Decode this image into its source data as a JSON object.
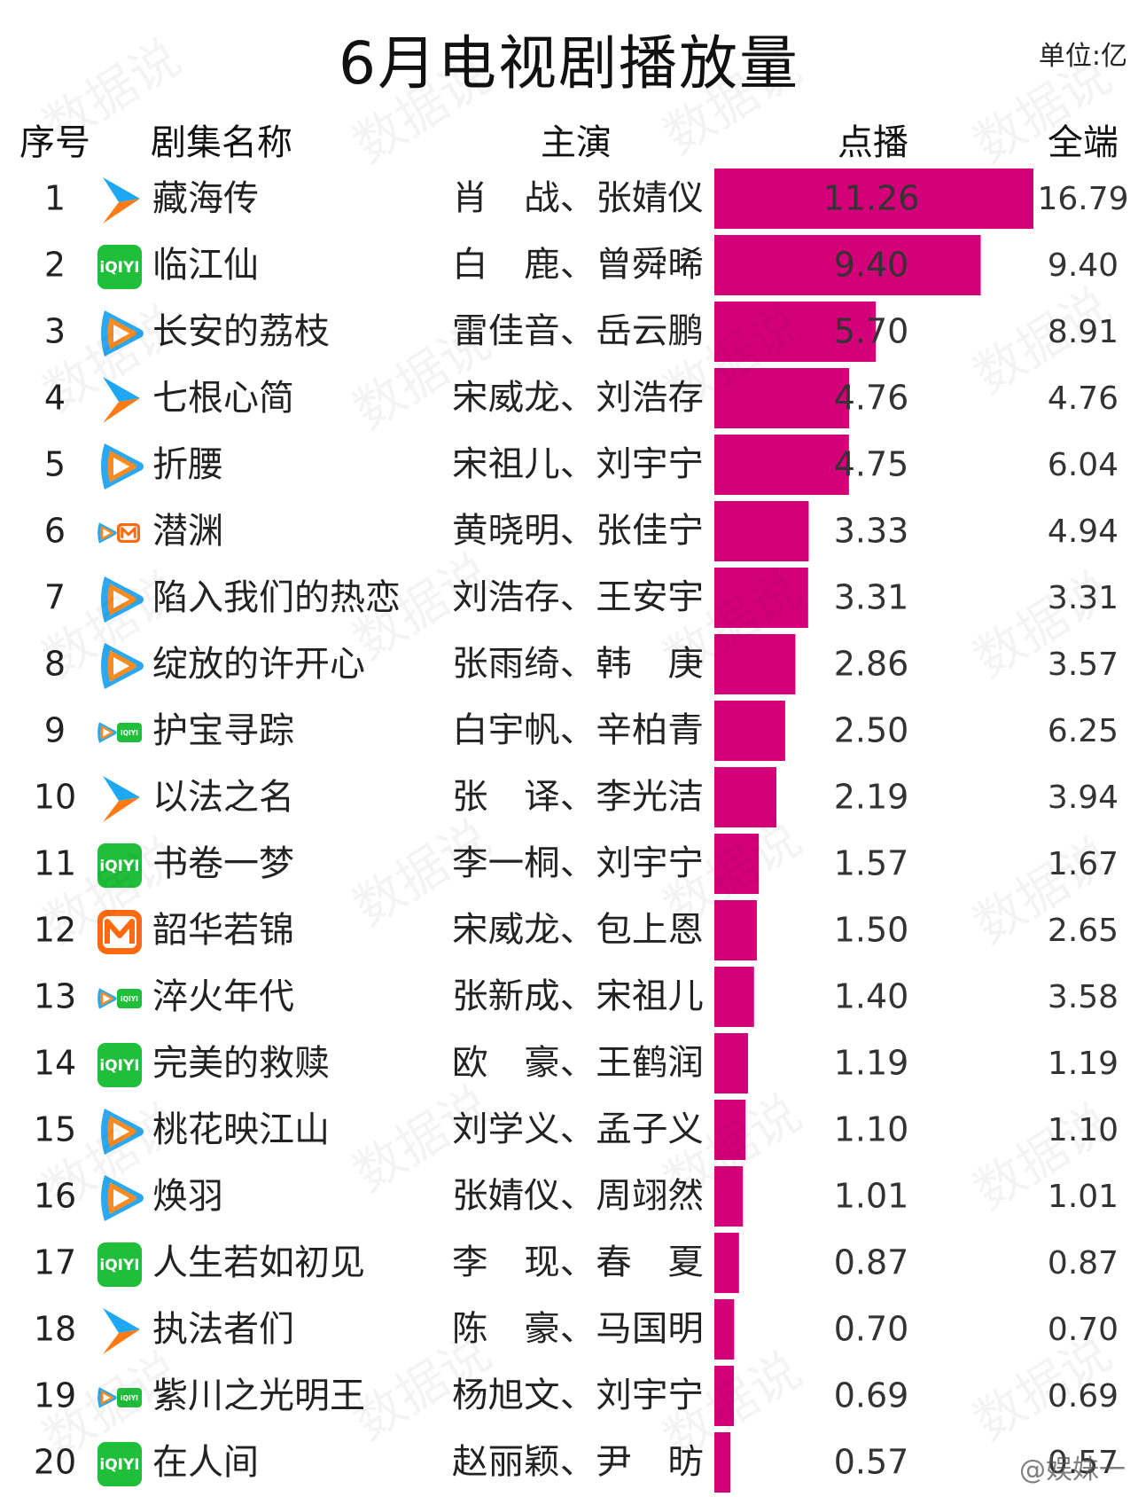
{
  "title": "6月电视剧播放量",
  "unit_label": "单位:亿",
  "headers": {
    "rank": "序号",
    "name": "剧集名称",
    "cast": "主演",
    "vod": "点播",
    "total": "全端"
  },
  "watermark_text": "数据说",
  "weibo_mark": "@娱妹一",
  "colors": {
    "bar": "#d4007a",
    "text": "#222222"
  },
  "chart_data": {
    "type": "bar",
    "orientation": "horizontal",
    "title": "6月电视剧播放量",
    "unit": "单位:亿",
    "series": [
      {
        "name": "点播",
        "color": "#d4007a"
      }
    ],
    "rows": [
      {
        "rank": "1",
        "platform": "youku",
        "name": "藏海传",
        "cast": "肖　战、张婧仪",
        "vod": 11.26,
        "vod_label": "11.26",
        "total_label": "16.79"
      },
      {
        "rank": "2",
        "platform": "iqiyi",
        "name": "临江仙",
        "cast": "白　鹿、曾舜晞",
        "vod": 9.4,
        "vod_label": "9.40",
        "total_label": "9.40"
      },
      {
        "rank": "3",
        "platform": "tencent",
        "name": "长安的荔枝",
        "cast": "雷佳音、岳云鹏",
        "vod": 5.7,
        "vod_label": "5.70",
        "total_label": "8.91"
      },
      {
        "rank": "4",
        "platform": "youku",
        "name": "七根心简",
        "cast": "宋威龙、刘浩存",
        "vod": 4.76,
        "vod_label": "4.76",
        "total_label": "4.76"
      },
      {
        "rank": "5",
        "platform": "tencent",
        "name": "折腰",
        "cast": "宋祖儿、刘宇宁",
        "vod": 4.75,
        "vod_label": "4.75",
        "total_label": "6.04"
      },
      {
        "rank": "6",
        "platform": "tencent-mango",
        "name": "潜渊",
        "cast": "黄晓明、张佳宁",
        "vod": 3.33,
        "vod_label": "3.33",
        "total_label": "4.94"
      },
      {
        "rank": "7",
        "platform": "tencent",
        "name": "陷入我们的热恋",
        "cast": "刘浩存、王安宇",
        "vod": 3.31,
        "vod_label": "3.31",
        "total_label": "3.31"
      },
      {
        "rank": "8",
        "platform": "tencent",
        "name": "绽放的许开心",
        "cast": "张雨绮、韩　庚",
        "vod": 2.86,
        "vod_label": "2.86",
        "total_label": "3.57"
      },
      {
        "rank": "9",
        "platform": "tencent-iqiyi",
        "name": "护宝寻踪",
        "cast": "白宇帆、辛柏青",
        "vod": 2.5,
        "vod_label": "2.50",
        "total_label": "6.25"
      },
      {
        "rank": "10",
        "platform": "youku",
        "name": "以法之名",
        "cast": "张　译、李光洁",
        "vod": 2.19,
        "vod_label": "2.19",
        "total_label": "3.94"
      },
      {
        "rank": "11",
        "platform": "iqiyi",
        "name": "书卷一梦",
        "cast": "李一桐、刘宇宁",
        "vod": 1.57,
        "vod_label": "1.57",
        "total_label": "1.67"
      },
      {
        "rank": "12",
        "platform": "mango",
        "name": "韶华若锦",
        "cast": "宋威龙、包上恩",
        "vod": 1.5,
        "vod_label": "1.50",
        "total_label": "2.65"
      },
      {
        "rank": "13",
        "platform": "tencent-iqiyi",
        "name": "淬火年代",
        "cast": "张新成、宋祖儿",
        "vod": 1.4,
        "vod_label": "1.40",
        "total_label": "3.58"
      },
      {
        "rank": "14",
        "platform": "iqiyi",
        "name": "完美的救赎",
        "cast": "欧　豪、王鹤润",
        "vod": 1.19,
        "vod_label": "1.19",
        "total_label": "1.19"
      },
      {
        "rank": "15",
        "platform": "tencent",
        "name": "桃花映江山",
        "cast": "刘学义、孟子义",
        "vod": 1.1,
        "vod_label": "1.10",
        "total_label": "1.10"
      },
      {
        "rank": "16",
        "platform": "tencent",
        "name": "焕羽",
        "cast": "张婧仪、周翊然",
        "vod": 1.01,
        "vod_label": "1.01",
        "total_label": "1.01"
      },
      {
        "rank": "17",
        "platform": "iqiyi",
        "name": "人生若如初见",
        "cast": "李　现、春　夏",
        "vod": 0.87,
        "vod_label": "0.87",
        "total_label": "0.87"
      },
      {
        "rank": "18",
        "platform": "youku",
        "name": "执法者们",
        "cast": "陈　豪、马国明",
        "vod": 0.7,
        "vod_label": "0.70",
        "total_label": "0.70"
      },
      {
        "rank": "19",
        "platform": "tencent-iqiyi",
        "name": "紫川之光明王",
        "cast": "杨旭文、刘宇宁",
        "vod": 0.69,
        "vod_label": "0.69",
        "total_label": "0.69"
      },
      {
        "rank": "20",
        "platform": "iqiyi",
        "name": "在人间",
        "cast": "赵丽颖、尹　昉",
        "vod": 0.57,
        "vod_label": "0.57",
        "total_label": "0.57"
      }
    ]
  }
}
